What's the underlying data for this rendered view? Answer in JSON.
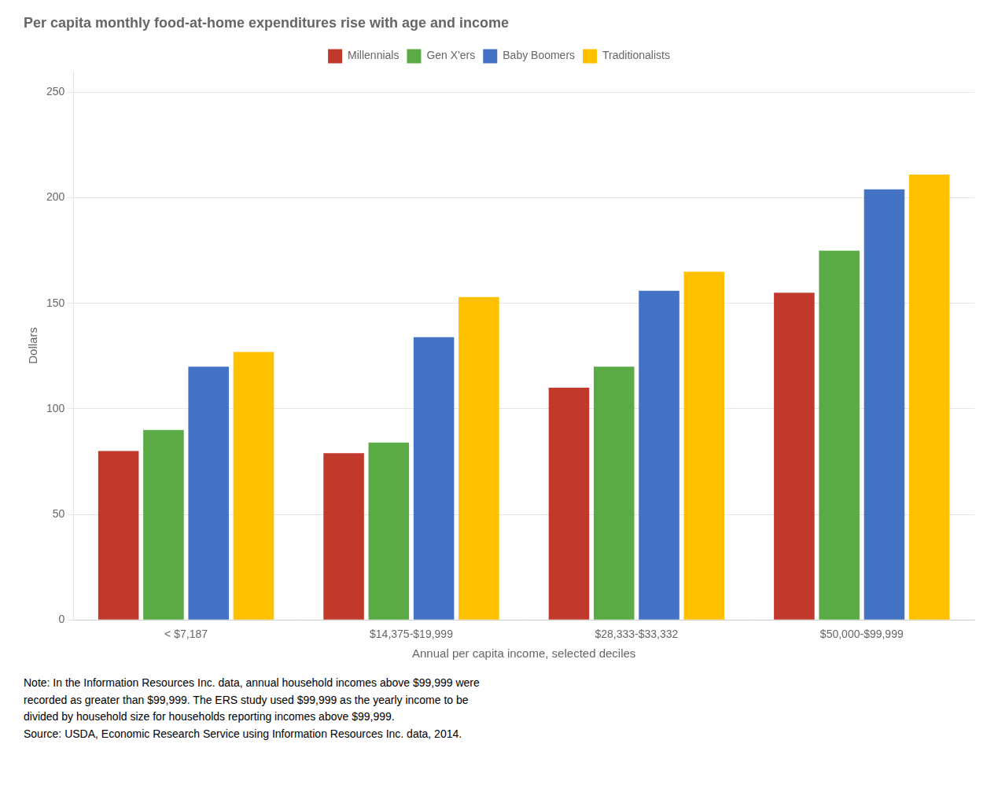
{
  "chart_data": {
    "type": "bar",
    "title": "Per capita monthly food-at-home expenditures rise with age and income",
    "ylabel": "Dollars",
    "xlabel": "Annual per capita income, selected deciles",
    "categories": [
      "< $7,187",
      "$14,375-$19,999",
      "$28,333-$33,332",
      "$50,000-$99,999"
    ],
    "series": [
      {
        "name": "Millennials",
        "color": "#c0392b",
        "values": [
          80,
          79,
          110,
          155
        ]
      },
      {
        "name": "Gen X'ers",
        "color": "#5aab46",
        "values": [
          90,
          84,
          120,
          175
        ]
      },
      {
        "name": "Baby Boomers",
        "color": "#4472c4",
        "values": [
          120,
          134,
          156,
          204
        ]
      },
      {
        "name": "Traditionalists",
        "color": "#ffc000",
        "values": [
          127,
          153,
          165,
          211
        ]
      }
    ],
    "ylim": [
      0,
      260
    ],
    "yticks": [
      0,
      50,
      100,
      150,
      200,
      250
    ],
    "grid": true,
    "legend": "top",
    "annotations": [
      "Note: In the Information Resources Inc. data, annual household incomes above $99,999 were\nrecorded as greater than $99,999. The ERS study used $99,999 as the yearly income to be\ndivided by household size for households reporting incomes above $99,999.\nSource: USDA, Economic Research Service using Information Resources Inc. data, 2014."
    ]
  }
}
